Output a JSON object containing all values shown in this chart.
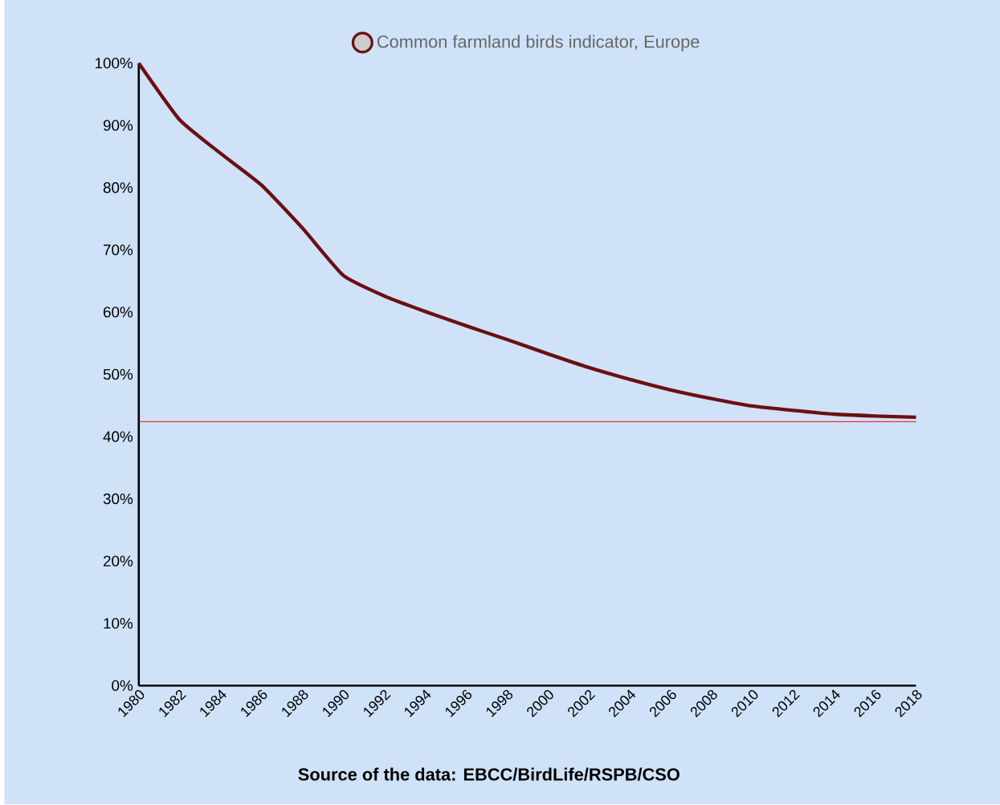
{
  "chart_data": {
    "type": "line",
    "x": [
      1980,
      1982,
      1984,
      1986,
      1988,
      1990,
      1992,
      1994,
      1996,
      1998,
      2000,
      2002,
      2004,
      2006,
      2008,
      2010,
      2012,
      2014,
      2016,
      2018
    ],
    "series": [
      {
        "name": "Common farmland birds indicator, Europe",
        "color": "#6b0f12",
        "values": [
          100,
          90.9,
          85.5,
          80.4,
          73.5,
          65.9,
          62.6,
          60.1,
          57.8,
          55.6,
          53.3,
          51.1,
          49.2,
          47.5,
          46.1,
          44.9,
          44.2,
          43.6,
          43.3,
          43.1
        ]
      }
    ],
    "xlim": [
      1980,
      2018
    ],
    "xticks": [
      1980,
      1982,
      1984,
      1986,
      1988,
      1990,
      1992,
      1994,
      1996,
      1998,
      2000,
      2002,
      2004,
      2006,
      2008,
      2010,
      2012,
      2014,
      2016,
      2018
    ],
    "ylim": [
      0,
      100
    ],
    "yticks": [
      {
        "value": 0,
        "label": "0%"
      },
      {
        "value": 10,
        "label": "10%"
      },
      {
        "value": 20,
        "label": "20%"
      },
      {
        "value": 30,
        "label": "30%"
      },
      {
        "value": 40,
        "label": "40%"
      },
      {
        "value": 50,
        "label": "50%"
      },
      {
        "value": 60,
        "label": "60%"
      },
      {
        "value": 70,
        "label": "70%"
      },
      {
        "value": 80,
        "label": "80%"
      },
      {
        "value": 90,
        "label": "90%"
      },
      {
        "value": 100,
        "label": "100%"
      }
    ],
    "ref_lines": [
      {
        "axis": "y",
        "value": 42.4,
        "color": "#ff0000"
      }
    ],
    "legend": "top",
    "grid": false,
    "annotations": [
      "**Source of the data: EBCC/BirdLife/RSPB/CSO**"
    ]
  }
}
